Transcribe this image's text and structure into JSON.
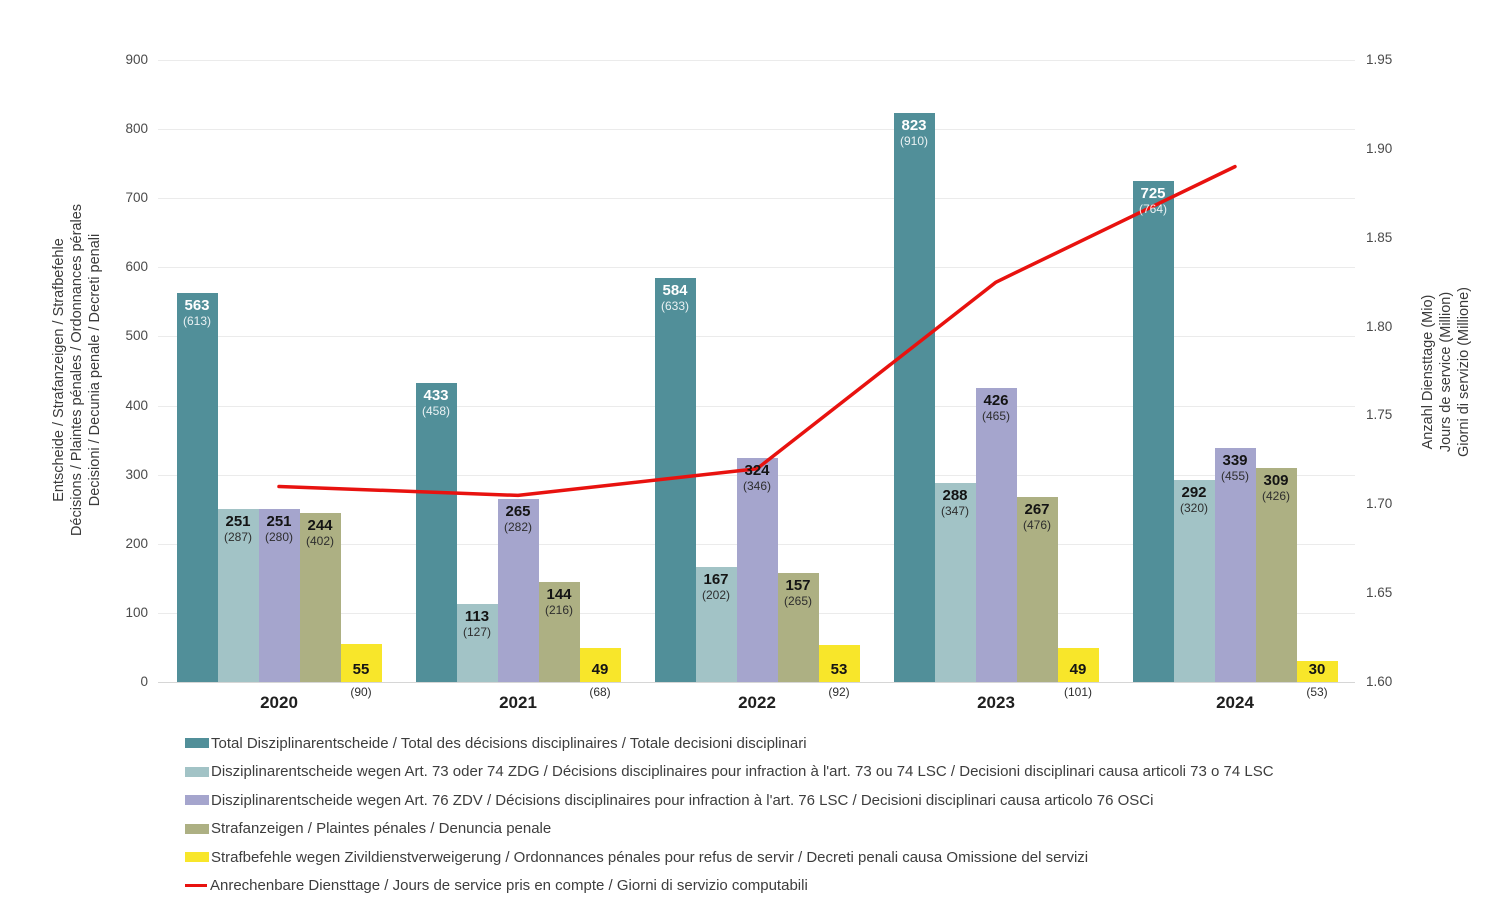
{
  "chart_data": {
    "type": "bar+line",
    "categories": [
      "2020",
      "2021",
      "2022",
      "2023",
      "2024"
    ],
    "bar_series": [
      {
        "name": "Total Disziplinarentscheide / Total des décisions disciplinaires / Totale decisioni disciplinari",
        "color": "#518f99",
        "label_style": "inside-white",
        "values": [
          563,
          433,
          584,
          823,
          725
        ],
        "secondary_values": [
          613,
          458,
          633,
          910,
          764
        ]
      },
      {
        "name": "Disziplinarentscheide wegen Art. 73 oder 74 ZDG / Décisions disciplinaires pour infraction à l'art. 73 ou 74 LSC / Decisioni disciplinari causa articoli 73 o 74 LSC",
        "color": "#a2c3c6",
        "label_style": "inside-dark",
        "values": [
          251,
          113,
          167,
          288,
          292
        ],
        "secondary_values": [
          287,
          127,
          202,
          347,
          320
        ]
      },
      {
        "name": "Disziplinarentscheide wegen Art. 76 ZDV / Décisions disciplinaires pour infraction à l'art. 76 LSC / Decisioni disciplinari causa articolo 76 OSCi",
        "color": "#a5a5cd",
        "label_style": "inside-dark",
        "values": [
          251,
          265,
          324,
          426,
          339
        ],
        "secondary_values": [
          280,
          282,
          346,
          465,
          455
        ]
      },
      {
        "name": "Strafanzeigen / Plaintes pénales / Denuncia penale",
        "color": "#adb083",
        "label_style": "inside-dark",
        "values": [
          244,
          144,
          157,
          267,
          309
        ],
        "secondary_values": [
          402,
          216,
          265,
          476,
          426
        ]
      },
      {
        "name": "Strafbefehle wegen Zivildienstverweigerung / Ordonnances pénales pour refus de servir / Decreti penali causa Omissione del servizi",
        "color": "#f8e62a",
        "label_style": "baseline",
        "values": [
          55,
          49,
          53,
          49,
          30
        ],
        "secondary_values": [
          90,
          68,
          92,
          101,
          53
        ]
      }
    ],
    "line_series": {
      "name": "Anrechenbare Diensttage / Jours de service pris en compte / Giorni di servizio computabili",
      "color": "#e8120f",
      "values": [
        1.71,
        1.705,
        1.72,
        1.825,
        1.89
      ]
    },
    "left_axis": {
      "title_lines": [
        "Entscheide / Strafanzeigen / Strafbefehle",
        "Décisions / Plaintes pénales / Ordonnances pérales",
        "Decisioni / Decunia penale / Decreti penali"
      ],
      "ticks": [
        0,
        100,
        200,
        300,
        400,
        500,
        600,
        700,
        800,
        900
      ],
      "range": [
        0,
        900
      ]
    },
    "right_axis": {
      "title_lines": [
        "Anzahl Diensttage (Mio)",
        "Jours de service (Million)",
        "Giorni di servizio (Millione)"
      ],
      "ticks": [
        "1.60",
        "1.65",
        "1.70",
        "1.75",
        "1.80",
        "1.85",
        "1.90",
        "1.95"
      ],
      "range": [
        1.6,
        1.95
      ]
    },
    "grid": true,
    "legend_position": "bottom"
  }
}
